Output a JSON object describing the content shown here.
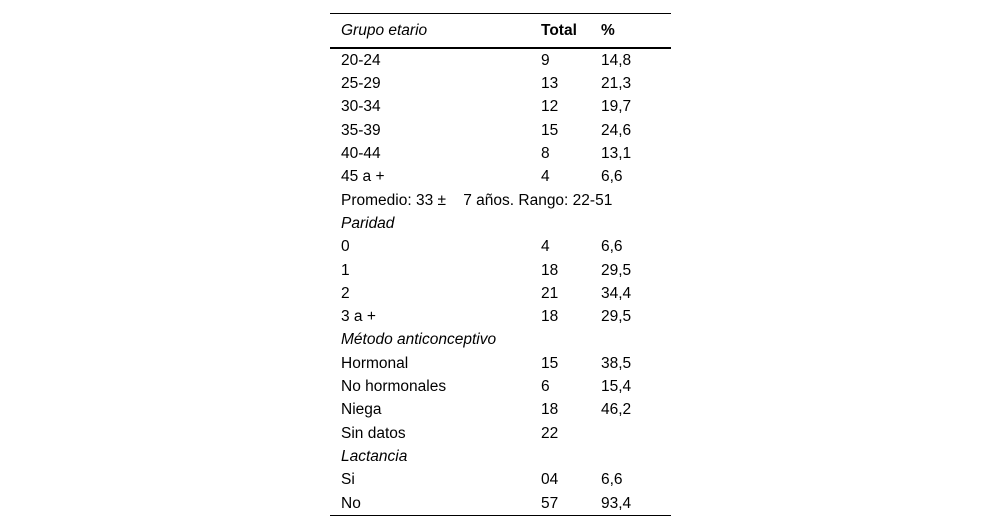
{
  "colors": {
    "background": "#ffffff",
    "text": "#000000",
    "rule": "#000000"
  },
  "table": {
    "header": {
      "label": "Grupo etario",
      "total": "Total",
      "percent": "%"
    },
    "rows": [
      {
        "label": "20-24",
        "total": "9",
        "pct": "14,8"
      },
      {
        "label": "25-29",
        "total": "13",
        "pct": "21,3"
      },
      {
        "label": "30-34",
        "total": "12",
        "pct": "19,7"
      },
      {
        "label": "35-39",
        "total": "15",
        "pct": "24,6"
      },
      {
        "label": "40-44",
        "total": "8",
        "pct": "13,1"
      },
      {
        "label": "45 a +",
        "total": "4",
        "pct": "6,6"
      },
      {
        "label": "Promedio: 33 ±    7 años. Rango: 22-51"
      },
      {
        "label": "Paridad"
      },
      {
        "label": "0",
        "total": "4",
        "pct": "6,6"
      },
      {
        "label": "1",
        "total": "18",
        "pct": "29,5"
      },
      {
        "label": "2",
        "total": "21",
        "pct": "34,4"
      },
      {
        "label": "3 a +",
        "total": "18",
        "pct": "29,5"
      },
      {
        "label": "Método anticonceptivo"
      },
      {
        "label": "Hormonal",
        "total": "15",
        "pct": "38,5"
      },
      {
        "label": "No hormonales",
        "total": "6",
        "pct": "15,4"
      },
      {
        "label": "Niega",
        "total": "18",
        "pct": "46,2"
      },
      {
        "label": "Sin datos",
        "total": "22"
      },
      {
        "label": "Lactancia"
      },
      {
        "label": "Si",
        "total": "04",
        "pct": "6,6"
      },
      {
        "label": "No",
        "total": "57",
        "pct": "93,4"
      }
    ]
  }
}
